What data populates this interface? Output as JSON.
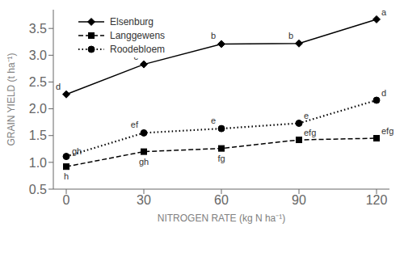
{
  "chart_data": {
    "type": "line",
    "xlabel": "NITROGEN RATE (kg N ha⁻¹)",
    "ylabel": "GRAIN YIELD (t ha⁻¹)",
    "x": [
      0,
      30,
      60,
      90,
      120
    ],
    "xlim": [
      0,
      120
    ],
    "xticks": [
      0,
      30,
      60,
      90,
      120
    ],
    "ylim": [
      0.5,
      3.85
    ],
    "yticks": [
      0.5,
      {
        "value": 1,
        "label": "1.0"
      },
      1.5,
      {
        "value": 2,
        "label": "2.0"
      },
      2.5,
      {
        "value": 3,
        "label": "3.0"
      },
      3.5
    ],
    "grid": false,
    "legend": "upper left",
    "series": [
      {
        "name": "Elsenburg",
        "color": "black",
        "line_style": "solid",
        "marker": "diamond",
        "values": [
          2.27,
          2.83,
          3.21,
          3.22,
          3.67
        ],
        "annotations": [
          "d",
          "c",
          "b",
          "b",
          "a"
        ]
      },
      {
        "name": "Langgewens",
        "color": "black",
        "line_style": "dashed",
        "marker": "square",
        "values": [
          0.92,
          1.2,
          1.26,
          1.42,
          1.45
        ],
        "annotations": [
          "h",
          "gh",
          "fg",
          "efg",
          "efg"
        ]
      },
      {
        "name": "Roodebloem",
        "color": "black",
        "line_style": "dotted",
        "marker": "circle",
        "values": [
          1.11,
          1.55,
          1.63,
          1.73,
          2.16
        ],
        "annotations": [
          "gh",
          "ef",
          "e",
          "e",
          "d"
        ]
      }
    ]
  }
}
